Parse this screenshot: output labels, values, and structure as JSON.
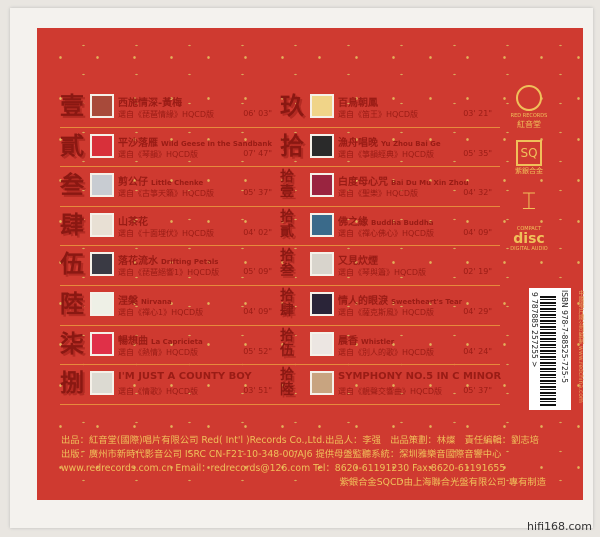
{
  "tracks_left": [
    {
      "num": "壹",
      "title": "西施情深-黃梅",
      "en": "",
      "sub": "選自《琵琶情緣》HQCD版",
      "time": "06' 03\"",
      "thumb": "#a84a3a"
    },
    {
      "num": "貳",
      "title": "平沙落雁",
      "en": "Wild Geese in the Sandbank",
      "sub": "選自《琴韻》HQCD版",
      "time": "07' 47\"",
      "thumb": "#d8303a"
    },
    {
      "num": "叁",
      "title": "剪公仔",
      "en": "Little Chenke",
      "sub": "選自《古箏天籟》HQCD版",
      "time": "05' 37\"",
      "thumb": "#c8ccd2"
    },
    {
      "num": "肆",
      "title": "山茶花",
      "en": "",
      "sub": "選自《十面埋伏》HQCD版",
      "time": "04' 02\"",
      "thumb": "#e8e0d4"
    },
    {
      "num": "伍",
      "title": "落花流水",
      "en": "Drifting Petals",
      "sub": "選自《琵琶絕響1》HQCD版",
      "time": "05' 09\"",
      "thumb": "#3a3a44"
    },
    {
      "num": "陸",
      "title": "涅槃",
      "en": "Nirvana",
      "sub": "選自《禪心1》HQCD版",
      "time": "04' 09\"",
      "thumb": "#eef0e6"
    },
    {
      "num": "柒",
      "title": "暢想曲",
      "en": "La Capricieta",
      "sub": "選自《熱情》HQCD版",
      "time": "05' 52\"",
      "thumb": "#e03048"
    },
    {
      "num": "捌",
      "title": "I'M JUST A COUNTY BOY",
      "en": "",
      "sub": "選自《情歌》HQCD版",
      "time": "03' 51\"",
      "thumb": "#dcdad2"
    }
  ],
  "tracks_right": [
    {
      "num": "玖",
      "title": "百鳥朝鳳",
      "en": "",
      "sub": "選自《笛王》HQCD版",
      "time": "03' 21\"",
      "thumb": "#f0d488"
    },
    {
      "num": "拾",
      "title": "漁舟唱晚",
      "en": "Yu Zhou Bai Ge",
      "sub": "選自《箏韻經典》HQCD版",
      "time": "05' 35\"",
      "thumb": "#2a2a2a"
    },
    {
      "num": "拾壹",
      "title": "白度母心咒",
      "en": "Bai Du Mu Xin Zhou",
      "sub": "選自《聖樂》HQCD版",
      "time": "04' 32\"",
      "thumb": "#9a2440"
    },
    {
      "num": "拾貳",
      "title": "佛之緣",
      "en": "Buddha Buddha",
      "sub": "選自《禪心佛心》HQCD版",
      "time": "04' 09\"",
      "thumb": "#3a6a8a"
    },
    {
      "num": "拾叁",
      "title": "又見炊煙",
      "en": "",
      "sub": "選自《琴與簫》HQCD版",
      "time": "02' 19\"",
      "thumb": "#d8d4cc"
    },
    {
      "num": "拾肆",
      "title": "情人的眼淚",
      "en": "Sweetheart's Tear",
      "sub": "選自《薩克斯風》HQCD版",
      "time": "04' 29\"",
      "thumb": "#2a2438"
    },
    {
      "num": "拾伍",
      "title": "晨香",
      "en": "Whistler",
      "sub": "選自《別人的歌》HQCD版",
      "time": "04' 24\"",
      "thumb": "#ece6e2"
    },
    {
      "num": "拾陸",
      "title": "SYMPHONY NO.5 IN C MINOR",
      "en": "",
      "sub": "選自《靚聲交響曲》HQCD版",
      "time": "05' 37\"",
      "thumb": "#c8a480"
    }
  ],
  "credits": {
    "line1": "出品：紅音堂(國際)唱片有限公司 Red( Int'l )Records Co.,Ltd.出品人：李强　出品策劃：林燦　責任編輯：劉志培",
    "line2": "出版：廣州市新時代影音公司 ISRC CN-F21-10-348-00/AJ6 提供母盤監聽系統：深圳雅樂音國際音響中心",
    "line3": "www.redrecords.com.cn Email：redrecords@126.com Tel：8620-61191230 Fax:8620-61191655",
    "line4": "紫銀合金SQCD由上海聯合光盤有限公司 專有制造"
  },
  "logos": {
    "red_records": "RED RECORDS",
    "red_records_cn": "紅音堂",
    "sq": "SQ",
    "sq_cn": "紫銀合金",
    "cd_top": "COMPACT",
    "cd_mid": "disc",
    "cd_bottom": "DIGITAL AUDIO"
  },
  "barcode": {
    "isbn": "ISBN 978-7-88525-725-5",
    "digits": "9 787885 257255 >",
    "side_text": "中國唱片總公司監制 www.redchina.com"
  },
  "watermark": "hifi168.com",
  "colors": {
    "panel": "#cf3a30",
    "text_dark_red": "#9a1c15",
    "gold": "#f0c05a"
  }
}
